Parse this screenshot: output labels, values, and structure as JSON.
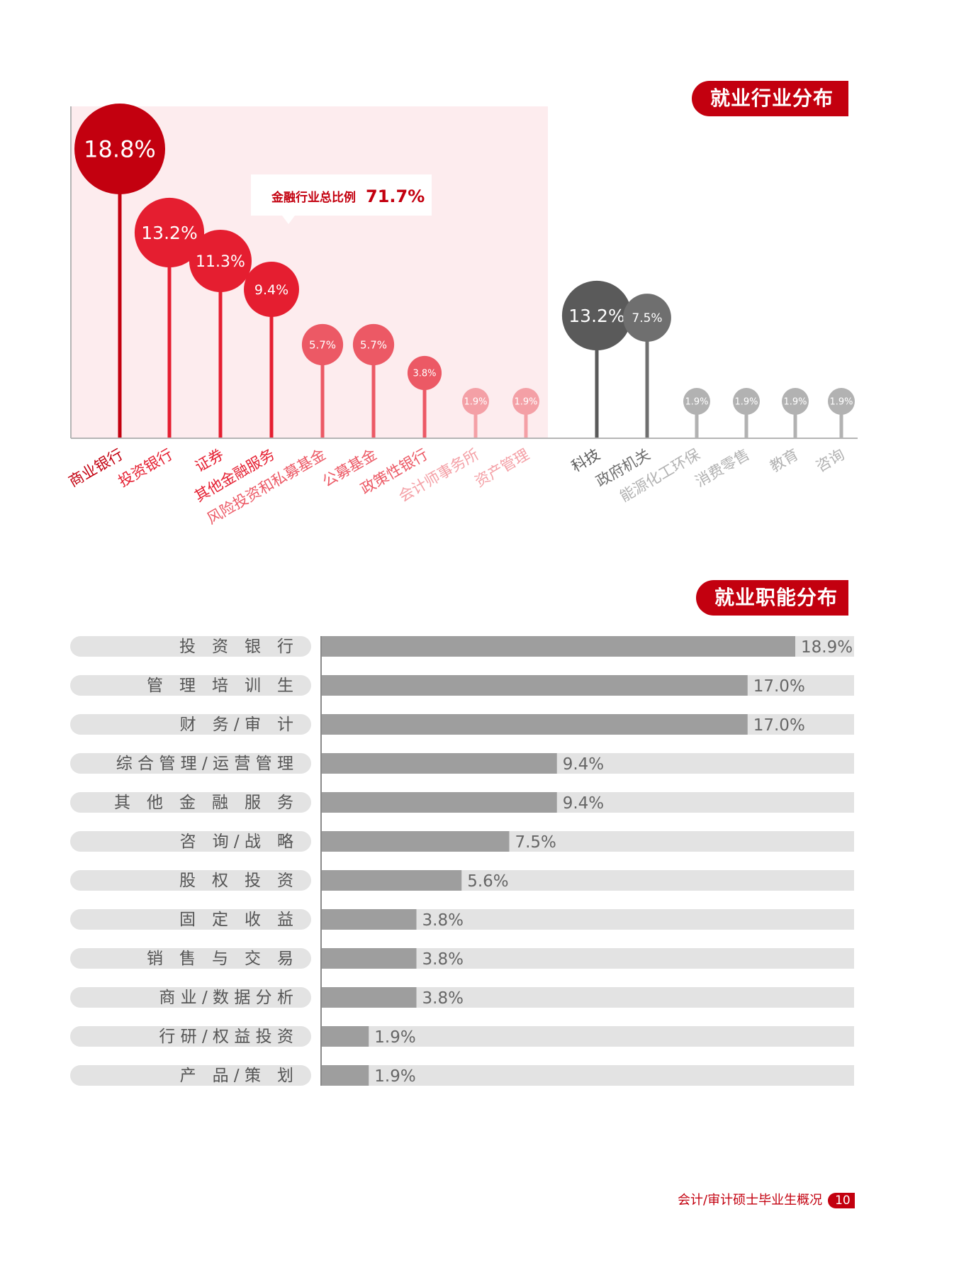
{
  "section1": {
    "title": "就业行业分布"
  },
  "section2": {
    "title": "就业职能分布"
  },
  "chart_data": [
    {
      "type": "lollipop",
      "callout": {
        "label": "金融行业总比例",
        "value": "71.7%"
      },
      "categories": [
        "商业银行",
        "投资银行",
        "证券",
        "其他金融服务",
        "风险投资和私募基金",
        "公募基金",
        "政策性银行",
        "会计师事务所",
        "资产管理",
        "科技",
        "政府机关",
        "能源化工环保",
        "消费零售",
        "教育",
        "咨询"
      ],
      "values": [
        18.8,
        13.2,
        11.3,
        9.4,
        5.7,
        5.7,
        3.8,
        1.9,
        1.9,
        13.2,
        7.5,
        1.9,
        1.9,
        1.9,
        1.9
      ],
      "value_labels": [
        "18.8%",
        "13.2%",
        "11.3%",
        "9.4%",
        "5.7%",
        "5.7%",
        "3.8%",
        "1.9%",
        "1.9%",
        "13.2%",
        "7.5%",
        "1.9%",
        "1.9%",
        "1.9%",
        "1.9%"
      ],
      "colors": [
        "#c3000f",
        "#e51e30",
        "#e51e30",
        "#e51e30",
        "#ec5965",
        "#ec5965",
        "#ec5965",
        "#f4a0a6",
        "#f4a0a6",
        "#5a5a5a",
        "#6f6f6f",
        "#b2b2b2",
        "#b2b2b2",
        "#b2b2b2",
        "#b2b2b2"
      ],
      "finance_group_background": "#fdecee"
    },
    {
      "type": "bar",
      "orientation": "horizontal",
      "categories": [
        "投　资　银　行",
        "管　理　培　训　生",
        "财　务 / 审　计",
        "综 合 管 理 / 运 营 管 理",
        "其　他　金　融　服　务",
        "咨　询 / 战　略",
        "股　权　投　资",
        "固　定　收　益",
        "销　售　与　交　易",
        "商 业 / 数 据 分 析",
        "行 研 / 权 益 投 资",
        "产　品 / 策　划"
      ],
      "values": [
        18.9,
        17.0,
        17.0,
        9.4,
        9.4,
        7.5,
        5.6,
        3.8,
        3.8,
        3.8,
        1.9,
        1.9
      ],
      "value_labels": [
        "18.9%",
        "17.0%",
        "17.0%",
        "9.4%",
        "9.4%",
        "7.5%",
        "5.6%",
        "3.8%",
        "3.8%",
        "3.8%",
        "1.9%",
        "1.9%"
      ],
      "xlim": [
        0,
        18.9
      ],
      "bar_color": "#9e9e9e",
      "track_color": "#e3e3e3"
    }
  ],
  "footer": {
    "text": "会计/审计硕士毕业生概况",
    "page": "10"
  }
}
